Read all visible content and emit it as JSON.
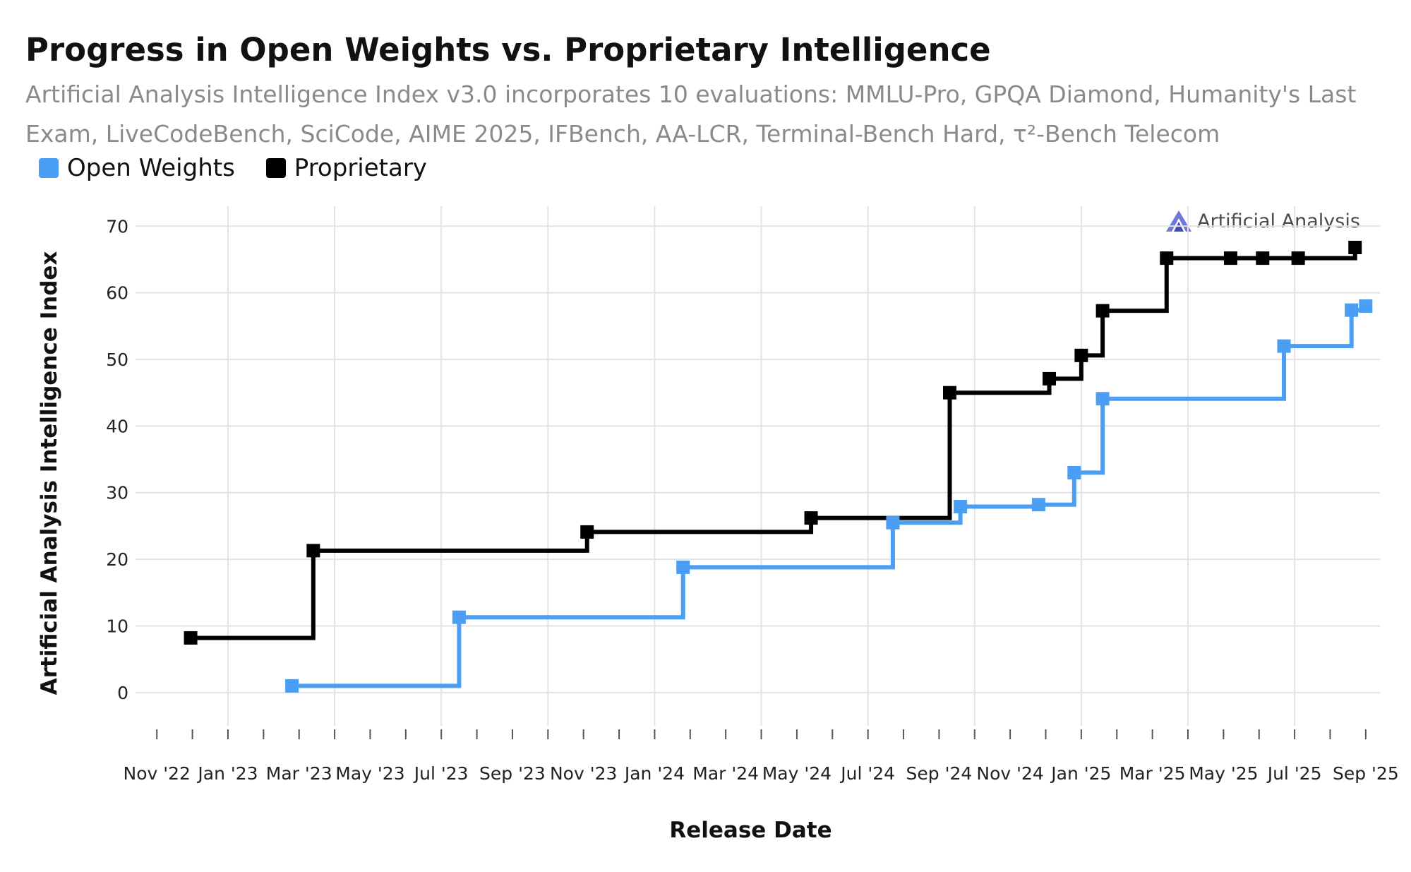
{
  "chart_data": {
    "type": "line",
    "title": "Progress in Open Weights vs. Proprietary Intelligence",
    "subtitle": "Artificial Analysis Intelligence Index v3.0 incorporates 10 evaluations: MMLU-Pro, GPQA Diamond, Humanity's Last Exam, LiveCodeBench, SciCode, AIME 2025, IFBench, AA-LCR, Terminal-Bench Hard, τ²-Bench Telecom",
    "xlabel": "Release Date",
    "ylabel": "Artificial Analysis Intelligence Index",
    "ylim": [
      -5,
      73
    ],
    "xlim": [
      -0.6,
      34.4
    ],
    "yticks": [
      0,
      10,
      20,
      30,
      40,
      50,
      60,
      70
    ],
    "x_tick_labels": [
      "Nov '22",
      "Jan '23",
      "Mar '23",
      "May '23",
      "Jul '23",
      "Sep '23",
      "Nov '23",
      "Jan '24",
      "Mar '24",
      "May '24",
      "Jul '24",
      "Sep '24",
      "Nov '24",
      "Jan '25",
      "Mar '25",
      "May '25",
      "Jul '25",
      "Sep '25"
    ],
    "x_unit": "months since Nov 2022",
    "grid": true,
    "legend_position": "top-left",
    "series": [
      {
        "name": "Open Weights",
        "color": "#4a9ff5",
        "x": [
          3.8,
          8.5,
          14.8,
          20.7,
          22.6,
          24.8,
          25.8,
          26.6,
          31.7,
          33.6,
          34.0
        ],
        "values": [
          1,
          11.3,
          18.8,
          25.5,
          27.9,
          28.2,
          33.0,
          44.1,
          52.0,
          57.4,
          58.0
        ]
      },
      {
        "name": "Proprietary",
        "color": "#000000",
        "x": [
          0.95,
          4.4,
          12.1,
          18.4,
          22.3,
          25.1,
          26.0,
          26.6,
          28.4,
          30.2,
          31.1,
          32.1,
          33.7
        ],
        "values": [
          8.2,
          21.3,
          24.1,
          26.2,
          45.0,
          47.1,
          50.6,
          57.3,
          65.2,
          65.2,
          65.2,
          65.2,
          66.8
        ]
      }
    ]
  },
  "brand": {
    "name": "Artificial Analysis"
  }
}
